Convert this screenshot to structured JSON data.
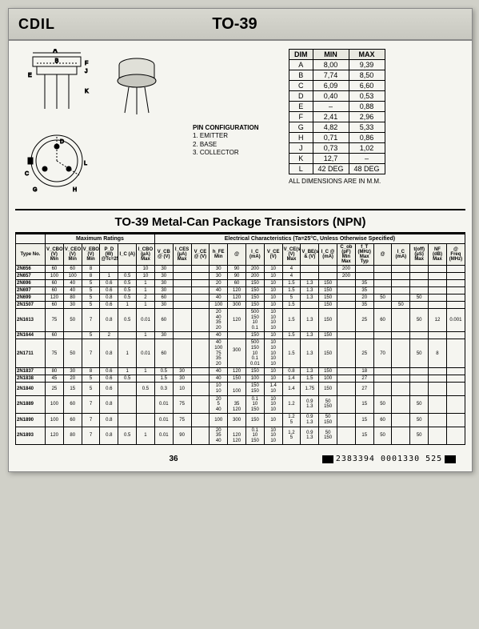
{
  "header": {
    "brand": "CDIL",
    "title": "TO-39"
  },
  "pin_config": {
    "heading": "PIN CONFIGURATION",
    "lines": [
      "1. EMITTER",
      "2. BASE",
      "3. COLLECTOR"
    ]
  },
  "dim_table": {
    "headers": [
      "DIM",
      "MIN",
      "MAX"
    ],
    "rows": [
      [
        "A",
        "8,00",
        "9,39"
      ],
      [
        "B",
        "7,74",
        "8,50"
      ],
      [
        "C",
        "6,09",
        "6,60"
      ],
      [
        "D",
        "0,40",
        "0,53"
      ],
      [
        "E",
        "–",
        "0,88"
      ],
      [
        "F",
        "2,41",
        "2,96"
      ],
      [
        "G",
        "4,82",
        "5,33"
      ],
      [
        "H",
        "0,71",
        "0,86"
      ],
      [
        "J",
        "0,73",
        "1,02"
      ],
      [
        "K",
        "12,7",
        "–"
      ],
      [
        "L",
        "42 DEG",
        "48 DEG"
      ]
    ],
    "note": "ALL DIMENSIONS ARE IN M.M."
  },
  "section_title": "TO-39 Metal-Can Package Transistors (NPN)",
  "groups": {
    "left": "Maximum Ratings",
    "right": "Electrical Characteristics (Ta=25°C, Unless Otherwise Specified)"
  },
  "columns_row1": [
    "Type No.",
    "V_CBO (V) Min",
    "V_CEO (V) Min",
    "V_EBO (V) Min",
    "P_D (W) @Tc=25°",
    "I_C (A)",
    "I_CBO (µA) Max",
    "V_CB @ (V)",
    "I_CES (µA) Max",
    "V_CE @ (V)",
    "h_FE Min",
    "@",
    "I_C (mA)",
    "V_CE (V)",
    "V_CE(sat) (V) Max",
    "V_BE(sat) & (V)",
    "I_C @ (mA)",
    "C_ob (pF) Min Max",
    "f_T (MHz) Max Typ",
    "@",
    "I_C (mA)",
    "t(off) (µS) Max",
    "NF (dB) Max",
    "@ Freq (MHz)"
  ],
  "rows": [
    {
      "type": "2N656",
      "cells": [
        "60",
        "60",
        "8",
        "",
        "",
        "10",
        "30",
        "",
        "",
        "30",
        "90",
        "200",
        "10",
        "4",
        "",
        "",
        "200",
        "",
        "",
        "",
        "",
        "",
        ""
      ]
    },
    {
      "type": "2N657",
      "cells": [
        "100",
        "100",
        "8",
        "1",
        "0.5",
        "10",
        "30",
        "",
        "",
        "30",
        "90",
        "200",
        "10",
        "4",
        "",
        "",
        "200",
        "",
        "",
        "",
        "",
        "",
        ""
      ]
    },
    {
      "type": "2N696",
      "cells": [
        "60",
        "40",
        "5",
        "0.6",
        "0.5",
        "1",
        "30",
        "",
        "",
        "20",
        "60",
        "150",
        "10",
        "1.5",
        "1.3",
        "150",
        "",
        "35",
        "",
        "",
        "",
        "",
        ""
      ]
    },
    {
      "type": "2N697",
      "cells": [
        "60",
        "40",
        "5",
        "0.6",
        "0.5",
        "1",
        "30",
        "",
        "",
        "40",
        "120",
        "150",
        "10",
        "1.5",
        "1.3",
        "150",
        "",
        "35",
        "",
        "",
        "",
        "",
        ""
      ]
    },
    {
      "type": "2N699",
      "cells": [
        "120",
        "80",
        "5",
        "0.8",
        "0.5",
        "2",
        "60",
        "",
        "",
        "40",
        "120",
        "150",
        "10",
        "5",
        "1.3",
        "150",
        "",
        "20",
        "50",
        "",
        "50",
        "",
        ""
      ]
    },
    {
      "type": "2N1507",
      "cells": [
        "60",
        "30",
        "5",
        "0.6",
        "1",
        "1",
        "30",
        "",
        "",
        "100",
        "300",
        "150",
        "10",
        "1.5",
        "",
        "150",
        "",
        "35",
        "",
        "50",
        "",
        "",
        ""
      ]
    },
    {
      "type": "2N1613",
      "cells": [
        "75",
        "50",
        "7",
        "0.8",
        "0.5",
        "0.01",
        "60",
        "",
        "",
        "20\n40\n35\n20",
        "\n120\n\n",
        "500\n150\n10\n0.1",
        "10\n10\n10\n10",
        "1.5",
        "1.3",
        "150",
        "",
        "25",
        "60",
        "",
        "50",
        "12",
        "0.001"
      ]
    },
    {
      "type": "2N1644",
      "cells": [
        "60",
        "",
        "5",
        "2",
        "",
        "1",
        "30",
        "",
        "",
        "40",
        "",
        "150",
        "10",
        "1.5",
        "1.3",
        "150",
        "",
        "",
        "",
        "",
        "",
        "",
        ""
      ]
    },
    {
      "type": "2N1711",
      "cells": [
        "75",
        "50",
        "7",
        "0.8",
        "1",
        "0.01",
        "60",
        "",
        "",
        "40\n100\n75\n35\n20",
        "\n300\n\n\n",
        "500\n150\n10\n0.1\n0.01",
        "10\n10\n10\n10\n10",
        "1.5",
        "1.3",
        "150",
        "",
        "25",
        "70",
        "",
        "50",
        "8",
        ""
      ]
    },
    {
      "type": "2N1837",
      "cells": [
        "80",
        "30",
        "8",
        "0.6",
        "1",
        "1",
        "0.5",
        "30",
        "",
        "40",
        "120",
        "150",
        "10",
        "0.8",
        "1.3",
        "150",
        "",
        "18",
        "",
        "",
        "",
        "",
        ""
      ]
    },
    {
      "type": "2N1838",
      "cells": [
        "45",
        "20",
        "5",
        "0.6",
        "0.5",
        "",
        "1.5",
        "30",
        "",
        "40",
        "150",
        "100",
        "10",
        "1.4",
        "1.5",
        "100",
        "",
        "27",
        "",
        "",
        "",
        "",
        ""
      ]
    },
    {
      "type": "2N1840",
      "cells": [
        "25",
        "15",
        "5",
        "0.6",
        "",
        "0.5",
        "0.3",
        "10",
        "",
        "10\n10",
        "\n100",
        "150\n150",
        "1.4\n10",
        "1.4",
        "1.75",
        "150",
        "",
        "27",
        "",
        "",
        "",
        "",
        ""
      ]
    },
    {
      "type": "2N1889",
      "cells": [
        "100",
        "60",
        "7",
        "0.8",
        "",
        "",
        "0.01",
        "75",
        "",
        "20\n5\n40",
        "\n35\n120",
        "0.1\n10\n150",
        "10\n10\n10",
        "1.2",
        "0.9\n1.3",
        "50\n150",
        "",
        "15",
        "50",
        "",
        "50",
        "",
        ""
      ]
    },
    {
      "type": "2N1890",
      "cells": [
        "100",
        "60",
        "7",
        "0.8",
        "",
        "",
        "0.01",
        "75",
        "",
        "100",
        "300",
        "150",
        "10",
        "1.2\n5",
        "0.9\n1.3",
        "50\n150",
        "",
        "15",
        "60",
        "",
        "50",
        "",
        ""
      ]
    },
    {
      "type": "2N1893",
      "cells": [
        "120",
        "80",
        "7",
        "0.8",
        "0.5",
        "1",
        "0.01",
        "90",
        "",
        "20\n35\n40",
        "\n120\n120",
        "0.1\n10\n150",
        "10\n10\n10",
        "1.2\n5",
        "0.9\n1.3",
        "50\n150",
        "",
        "15",
        "50",
        "",
        "50",
        "",
        ""
      ]
    }
  ],
  "footer": {
    "page": "36",
    "barcode": "2383394 0001330 525"
  },
  "colors": {
    "header_bg": "#d0d0c8",
    "border": "#000000"
  }
}
